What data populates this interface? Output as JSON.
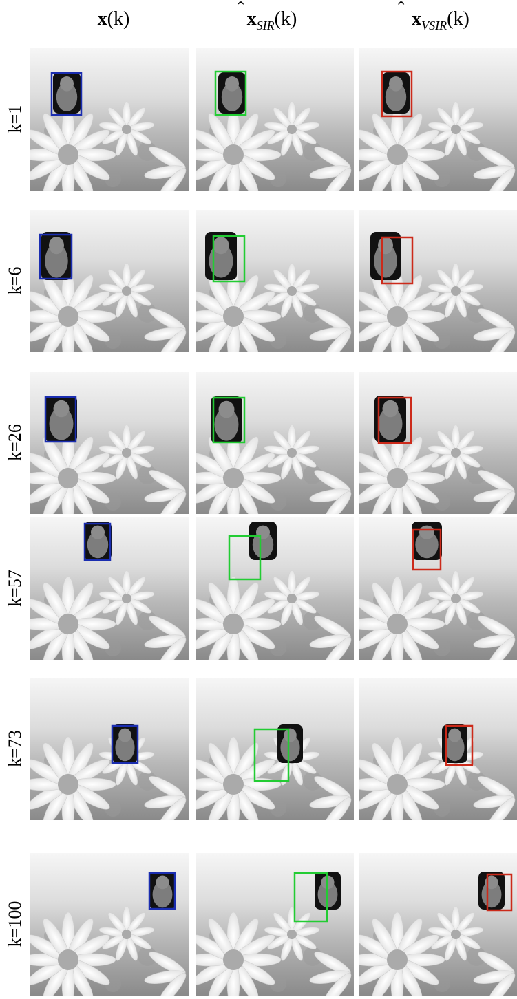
{
  "columns": [
    {
      "base": "x",
      "hat": false,
      "sub": null,
      "arg": "(k)"
    },
    {
      "base": "x",
      "hat": true,
      "sub": "SIR",
      "arg": "(k)"
    },
    {
      "base": "x",
      "hat": true,
      "sub": "VSIR",
      "arg": "(k)"
    }
  ],
  "rows": [
    "k=1",
    "k=6",
    "k=26",
    "k=57",
    "k=73",
    "k=100"
  ]
}
